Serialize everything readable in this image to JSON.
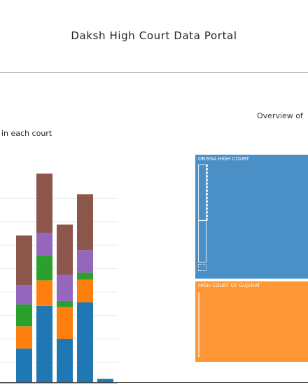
{
  "header": {
    "title": "Daksh High Court Data Portal"
  },
  "left_chart": {
    "title": "in each court"
  },
  "right_chart": {
    "title": "Overview of"
  },
  "treemap": {
    "tiles": [
      {
        "label": "ORISSA HIGH COURT",
        "color": "#4a90c7"
      },
      {
        "label": "HIGH COURT OF GUJARAT",
        "color": "#ff9736"
      }
    ]
  },
  "chart_data": {
    "type": "bar",
    "stacked": true,
    "title": "in each court",
    "grid": true,
    "colors": [
      "#1f77b4",
      "#ff7f0e",
      "#2ca02c",
      "#9467bd",
      "#8c564b"
    ],
    "bars": [
      {
        "segments": [
          0,
          0,
          0,
          0,
          0
        ]
      },
      {
        "segments": [
          50,
          32,
          32,
          28,
          72
        ]
      },
      {
        "segments": [
          112,
          37,
          35,
          34,
          86
        ]
      },
      {
        "segments": [
          64,
          46,
          9,
          38,
          73
        ]
      },
      {
        "segments": [
          117,
          33,
          10,
          33,
          81
        ]
      },
      {
        "segments": [
          6,
          0,
          0,
          0,
          0
        ]
      }
    ],
    "ylim": [
      0,
      310
    ]
  }
}
